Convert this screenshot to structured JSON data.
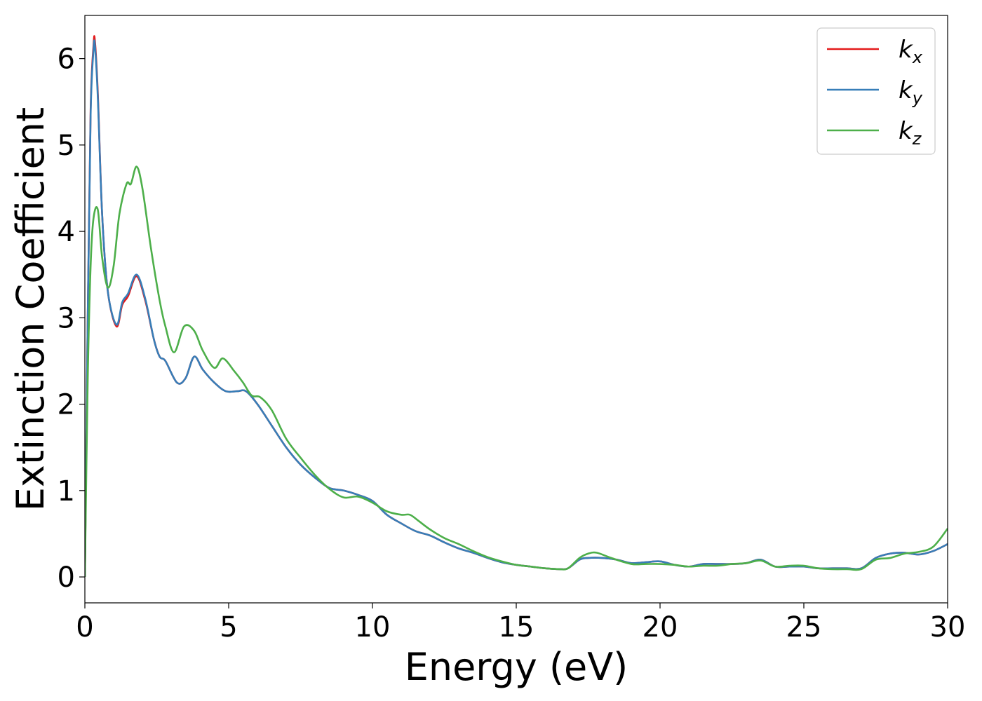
{
  "chart_data": {
    "type": "line",
    "title": "",
    "xlabel": "Energy (eV)",
    "ylabel": "Extinction Coefficient",
    "xlim": [
      0,
      30
    ],
    "ylim": [
      -0.3,
      6.5
    ],
    "xticks": [
      0,
      5,
      10,
      15,
      20,
      25,
      30
    ],
    "yticks": [
      0,
      1,
      2,
      3,
      4,
      5,
      6
    ],
    "grid": false,
    "legend_position": "top-right",
    "series": [
      {
        "name": "k",
        "subscript": "x",
        "color": "#e41a1c",
        "x": [
          0,
          0.1,
          0.2,
          0.3,
          0.35,
          0.45,
          0.6,
          0.8,
          1.1,
          1.3,
          1.5,
          1.8,
          2.1,
          2.4,
          2.6,
          2.8,
          3.2,
          3.5,
          3.8,
          4.1,
          4.5,
          4.9,
          5.3,
          5.6,
          6,
          6.5,
          7,
          7.5,
          8,
          8.5,
          9,
          9.5,
          10,
          10.5,
          11,
          11.5,
          12,
          12.5,
          13,
          13.5,
          14,
          14.5,
          15,
          15.5,
          16,
          16.5,
          16.8,
          17.2,
          17.5,
          18,
          18.5,
          19,
          19.5,
          20,
          20.5,
          21,
          21.5,
          22,
          22.5,
          23,
          23.5,
          24,
          24.5,
          25,
          25.5,
          26,
          26.5,
          27,
          27.5,
          28,
          28.5,
          29,
          29.5,
          30
        ],
        "y": [
          0.0,
          3.0,
          5.4,
          6.15,
          6.2,
          5.6,
          4.2,
          3.3,
          2.9,
          3.15,
          3.25,
          3.48,
          3.2,
          2.75,
          2.55,
          2.5,
          2.25,
          2.3,
          2.55,
          2.4,
          2.25,
          2.15,
          2.15,
          2.15,
          2.0,
          1.75,
          1.5,
          1.3,
          1.15,
          1.03,
          1.0,
          0.95,
          0.88,
          0.72,
          0.62,
          0.53,
          0.48,
          0.4,
          0.33,
          0.28,
          0.22,
          0.17,
          0.14,
          0.12,
          0.1,
          0.09,
          0.1,
          0.2,
          0.22,
          0.22,
          0.2,
          0.16,
          0.17,
          0.18,
          0.14,
          0.12,
          0.15,
          0.15,
          0.15,
          0.16,
          0.2,
          0.12,
          0.12,
          0.12,
          0.1,
          0.1,
          0.1,
          0.1,
          0.22,
          0.27,
          0.28,
          0.26,
          0.3,
          0.38
        ]
      },
      {
        "name": "k",
        "subscript": "y",
        "color": "#377eb8",
        "x": [
          0,
          0.1,
          0.2,
          0.3,
          0.35,
          0.45,
          0.6,
          0.8,
          1.1,
          1.3,
          1.5,
          1.8,
          2.1,
          2.4,
          2.6,
          2.8,
          3.2,
          3.5,
          3.8,
          4.1,
          4.5,
          4.9,
          5.3,
          5.6,
          6,
          6.5,
          7,
          7.5,
          8,
          8.5,
          9,
          9.5,
          10,
          10.5,
          11,
          11.5,
          12,
          12.5,
          13,
          13.5,
          14,
          14.5,
          15,
          15.5,
          16,
          16.5,
          16.8,
          17.2,
          17.5,
          18,
          18.5,
          19,
          19.5,
          20,
          20.5,
          21,
          21.5,
          22,
          22.5,
          23,
          23.5,
          24,
          24.5,
          25,
          25.5,
          26,
          26.5,
          27,
          27.5,
          28,
          28.5,
          29,
          29.5,
          30
        ],
        "y": [
          0.0,
          3.0,
          5.35,
          6.1,
          6.15,
          5.55,
          4.2,
          3.3,
          2.92,
          3.18,
          3.28,
          3.5,
          3.22,
          2.75,
          2.55,
          2.5,
          2.25,
          2.3,
          2.55,
          2.4,
          2.25,
          2.15,
          2.15,
          2.15,
          2.0,
          1.75,
          1.5,
          1.3,
          1.15,
          1.03,
          1.0,
          0.95,
          0.88,
          0.72,
          0.62,
          0.53,
          0.48,
          0.4,
          0.33,
          0.28,
          0.22,
          0.17,
          0.14,
          0.12,
          0.1,
          0.09,
          0.1,
          0.2,
          0.22,
          0.22,
          0.2,
          0.16,
          0.17,
          0.18,
          0.14,
          0.12,
          0.15,
          0.15,
          0.15,
          0.16,
          0.2,
          0.12,
          0.12,
          0.12,
          0.1,
          0.1,
          0.1,
          0.1,
          0.22,
          0.27,
          0.28,
          0.26,
          0.3,
          0.38
        ]
      },
      {
        "name": "k",
        "subscript": "z",
        "color": "#4daf4a",
        "x": [
          0,
          0.1,
          0.2,
          0.3,
          0.45,
          0.6,
          0.8,
          1.0,
          1.2,
          1.45,
          1.6,
          1.8,
          2.0,
          2.3,
          2.6,
          2.8,
          3.1,
          3.45,
          3.8,
          4.1,
          4.5,
          4.8,
          5.2,
          5.5,
          5.8,
          6.1,
          6.5,
          7,
          7.5,
          8,
          8.5,
          9,
          9.5,
          10,
          10.5,
          11,
          11.3,
          11.6,
          12,
          12.5,
          13,
          13.5,
          14,
          14.5,
          15,
          15.5,
          16,
          16.5,
          16.8,
          17.2,
          17.5,
          17.8,
          18.3,
          19,
          19.5,
          20,
          20.5,
          21,
          21.5,
          22,
          22.5,
          23,
          23.5,
          24,
          24.5,
          25,
          25.5,
          26,
          26.5,
          27,
          27.5,
          28,
          28.5,
          29,
          29.5,
          30
        ],
        "y": [
          0.0,
          2.3,
          3.6,
          4.15,
          4.25,
          3.7,
          3.35,
          3.6,
          4.2,
          4.55,
          4.55,
          4.75,
          4.5,
          3.8,
          3.2,
          2.9,
          2.6,
          2.9,
          2.85,
          2.62,
          2.42,
          2.53,
          2.38,
          2.25,
          2.1,
          2.08,
          1.93,
          1.6,
          1.38,
          1.18,
          1.02,
          0.92,
          0.93,
          0.86,
          0.76,
          0.72,
          0.72,
          0.65,
          0.55,
          0.45,
          0.38,
          0.3,
          0.23,
          0.18,
          0.14,
          0.12,
          0.1,
          0.09,
          0.1,
          0.22,
          0.27,
          0.28,
          0.22,
          0.15,
          0.15,
          0.15,
          0.14,
          0.12,
          0.13,
          0.13,
          0.15,
          0.16,
          0.19,
          0.12,
          0.13,
          0.13,
          0.1,
          0.09,
          0.09,
          0.09,
          0.2,
          0.22,
          0.27,
          0.29,
          0.35,
          0.56
        ]
      }
    ]
  }
}
